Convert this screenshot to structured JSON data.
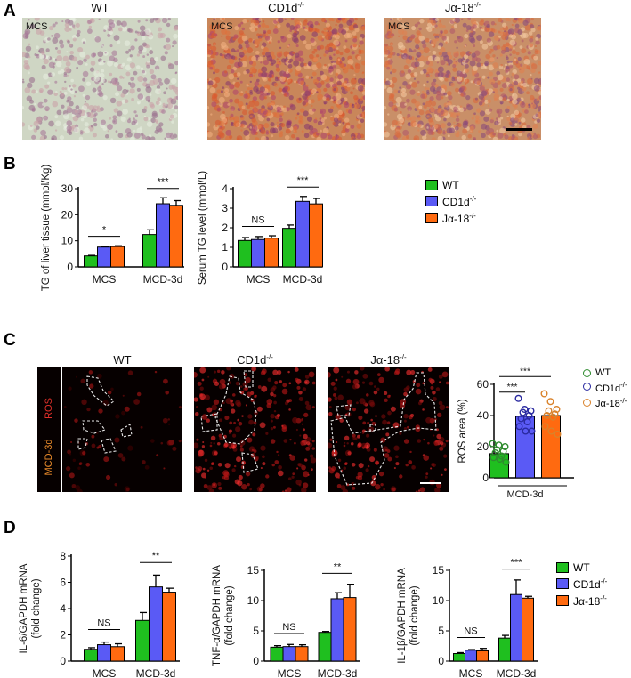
{
  "panels": {
    "a": "A",
    "b": "B",
    "c": "C",
    "d": "D"
  },
  "groups": {
    "wt": "WT",
    "cd1d": "CD1d",
    "cd1d_sup": "-/-",
    "ja18": "Jα-18",
    "ja18_sup": "-/-"
  },
  "panel_a": {
    "condition_tag": "MCS"
  },
  "panel_c": {
    "stain_label": "ROS",
    "condition_label": "MCD-3d"
  },
  "colors": {
    "wt": "#1fbf1f",
    "cd1d": "#5a5af5",
    "ja18": "#ff6a10",
    "ros_wt_pt": "#2e8b2e",
    "ros_cd1d_pt": "#2a2aa0",
    "ros_ja18_pt": "#d9822b"
  },
  "chart_data": [
    {
      "id": "b1",
      "type": "bar",
      "ylabel": "TG of liver tissue (mmol/Kg)",
      "categories": [
        "MCS",
        "MCD-3d"
      ],
      "ylim": [
        0,
        30
      ],
      "yticks": [
        "0",
        "10",
        "20",
        "30"
      ],
      "series": [
        {
          "name": "WT",
          "values": [
            4.2,
            12.4
          ],
          "errors": [
            0.2,
            1.8
          ]
        },
        {
          "name": "CD1d-/-",
          "values": [
            7.6,
            24.2
          ],
          "errors": [
            0.2,
            2.3
          ]
        },
        {
          "name": "Jα-18-/-",
          "values": [
            7.8,
            23.6
          ],
          "errors": [
            0.3,
            1.8
          ]
        }
      ],
      "annotations": [
        "*",
        "***"
      ]
    },
    {
      "id": "b2",
      "type": "bar",
      "ylabel": "Serum TG level (mmol/L)",
      "categories": [
        "MCS",
        "MCD-3d"
      ],
      "ylim": [
        0,
        4
      ],
      "yticks": [
        "0",
        "1",
        "2",
        "3",
        "4"
      ],
      "series": [
        {
          "name": "WT",
          "values": [
            1.35,
            1.97
          ],
          "errors": [
            0.15,
            0.17
          ]
        },
        {
          "name": "CD1d-/-",
          "values": [
            1.4,
            3.35
          ],
          "errors": [
            0.15,
            0.25
          ]
        },
        {
          "name": "Jα-18-/-",
          "values": [
            1.47,
            3.22
          ],
          "errors": [
            0.12,
            0.28
          ]
        }
      ],
      "annotations": [
        "NS",
        "***"
      ]
    },
    {
      "id": "c1",
      "type": "bar",
      "ylabel": "ROS area (%)",
      "categories": [
        "MCD-3d"
      ],
      "ylim": [
        0,
        60
      ],
      "yticks": [
        "0",
        "20",
        "40",
        "60"
      ],
      "series": [
        {
          "name": "WT",
          "values": [
            15.5
          ],
          "points": [
            22,
            21,
            20,
            18,
            17,
            16,
            14,
            13,
            12,
            10
          ]
        },
        {
          "name": "CD1d-/-",
          "values": [
            39.5
          ],
          "points": [
            51,
            44,
            43,
            42,
            40,
            38,
            36,
            33,
            30,
            30
          ]
        },
        {
          "name": "Jα-18-/-",
          "values": [
            40
          ],
          "points": [
            54,
            49,
            44,
            43,
            41,
            40,
            39,
            33,
            30,
            28
          ]
        }
      ],
      "annotations": [
        "***",
        "***"
      ]
    },
    {
      "id": "d1",
      "type": "bar",
      "ylabel": "IL-6/GAPDH mRNA",
      "ylabel2": "(fold change)",
      "categories": [
        "MCS",
        "MCD-3d"
      ],
      "ylim": [
        0,
        8
      ],
      "yticks": [
        "0",
        "2",
        "4",
        "6",
        "8"
      ],
      "series": [
        {
          "name": "WT",
          "values": [
            0.9,
            3.1
          ],
          "errors": [
            0.12,
            0.6
          ]
        },
        {
          "name": "CD1d-/-",
          "values": [
            1.25,
            5.65
          ],
          "errors": [
            0.2,
            0.9
          ]
        },
        {
          "name": "Jα-18-/-",
          "values": [
            1.1,
            5.25
          ],
          "errors": [
            0.22,
            0.3
          ]
        }
      ],
      "annotations": [
        "NS",
        "**"
      ]
    },
    {
      "id": "d2",
      "type": "bar",
      "ylabel": "TNF-α/GAPDH mRNA",
      "ylabel2": "(fold change)",
      "categories": [
        "MCS",
        "MCD-3d"
      ],
      "ylim": [
        0,
        15
      ],
      "yticks": [
        "0",
        "5",
        "10",
        "15"
      ],
      "series": [
        {
          "name": "WT",
          "values": [
            2.3,
            4.75
          ],
          "errors": [
            0.25,
            0.15
          ]
        },
        {
          "name": "CD1d-/-",
          "values": [
            2.4,
            10.3
          ],
          "errors": [
            0.35,
            1.0
          ]
        },
        {
          "name": "Jα-18-/-",
          "values": [
            2.4,
            10.5
          ],
          "errors": [
            0.3,
            2.2
          ]
        }
      ],
      "annotations": [
        "NS",
        "**"
      ]
    },
    {
      "id": "d3",
      "type": "bar",
      "ylabel": "IL-1β/GAPDH mRNA",
      "ylabel2": "(fold change)",
      "categories": [
        "MCS",
        "MCD-3d"
      ],
      "ylim": [
        0,
        15
      ],
      "yticks": [
        "0",
        "5",
        "10",
        "15"
      ],
      "series": [
        {
          "name": "WT",
          "values": [
            1.25,
            3.8
          ],
          "errors": [
            0.15,
            0.45
          ]
        },
        {
          "name": "CD1d-/-",
          "values": [
            1.8,
            11.0
          ],
          "errors": [
            0.1,
            2.4
          ]
        },
        {
          "name": "Jα-18-/-",
          "values": [
            1.7,
            10.4
          ],
          "errors": [
            0.4,
            0.3
          ]
        }
      ],
      "annotations": [
        "NS",
        "***"
      ]
    }
  ]
}
